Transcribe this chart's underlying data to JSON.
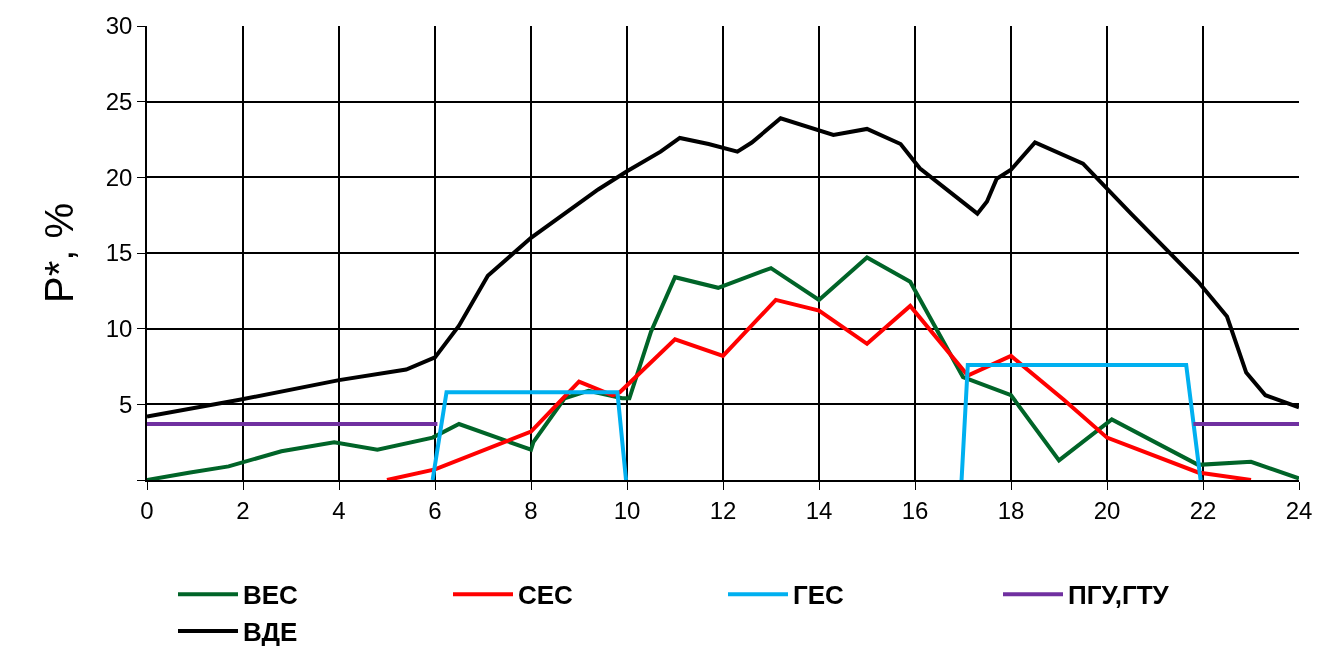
{
  "chart_data": {
    "type": "line",
    "ylabel": "P*, %",
    "xlim": [
      0,
      24
    ],
    "xticks": [
      0,
      2,
      4,
      6,
      8,
      10,
      12,
      14,
      16,
      18,
      20,
      22,
      24
    ],
    "ylim": [
      0,
      30
    ],
    "yticks": [
      {
        "value": 0,
        "label": null
      },
      5,
      10,
      15,
      20,
      25,
      30
    ],
    "grid": true,
    "legend": "bottom",
    "line_style": "solid",
    "marker": "none",
    "series": [
      {
        "name": "ВЕС",
        "color": "#006428",
        "x": [
          0,
          0.9,
          1.7,
          2.8,
          3.9,
          4.8,
          5.95,
          6.5,
          8.0,
          8.05,
          8.7,
          9.2,
          9.9,
          10.05,
          10.5,
          11.0,
          11.9,
          13.0,
          14.0,
          15.0,
          15.9,
          17.0,
          18.0,
          19.0,
          20.1,
          21.9,
          23.0,
          24.0
        ],
        "values": [
          0,
          0.5,
          0.9,
          1.9,
          2.5,
          2.0,
          2.8,
          3.7,
          2.0,
          2.5,
          5.4,
          5.9,
          5.4,
          5.4,
          9.8,
          13.4,
          12.7,
          14.0,
          11.9,
          14.7,
          13.1,
          6.8,
          5.6,
          1.3,
          4.0,
          1.0,
          1.2,
          0.1
        ]
      },
      {
        "name": "СЕС",
        "color": "#ff0000",
        "x": [
          5.0,
          6.0,
          8.0,
          9.0,
          9.7,
          9.85,
          11.0,
          12.0,
          13.1,
          14.0,
          15.0,
          15.9,
          17.1,
          18.0,
          19.1,
          20.0,
          21.9,
          23.0
        ],
        "values": [
          0,
          0.7,
          3.2,
          6.5,
          5.6,
          5.8,
          9.3,
          8.2,
          11.9,
          11.2,
          9.0,
          11.5,
          6.9,
          8.2,
          5.3,
          2.8,
          0.5,
          0
        ]
      },
      {
        "name": "ГЕС",
        "color": "#00b0f0",
        "x": [
          5.95,
          6.24,
          9.8,
          9.98,
          13.5,
          16.97,
          17.1,
          21.65,
          21.95
        ],
        "values": [
          0,
          5.8,
          5.8,
          0,
          null,
          0,
          7.6,
          7.6,
          0
        ]
      },
      {
        "name": "ПГУ,ГТУ",
        "color": "#7030a0",
        "x": [
          0,
          6.05,
          15,
          21.8,
          24
        ],
        "values": [
          3.7,
          3.7,
          null,
          3.7,
          3.7
        ]
      },
      {
        "name": "ВДЕ",
        "color": "#000000",
        "x": [
          0,
          1.93,
          4.0,
          5.4,
          6.0,
          6.5,
          7.1,
          8.0,
          9.4,
          10.0,
          10.7,
          11.1,
          11.7,
          12.3,
          12.6,
          13.2,
          14.3,
          15.0,
          15.7,
          16.1,
          17.3,
          17.5,
          17.7,
          18.0,
          18.5,
          19.5,
          20.5,
          21.9,
          22.5,
          22.9,
          23.3,
          24.0
        ],
        "values": [
          4.2,
          5.3,
          6.6,
          7.3,
          8.1,
          10.2,
          13.5,
          16.0,
          19.2,
          20.4,
          21.7,
          22.6,
          22.2,
          21.7,
          22.3,
          23.9,
          22.8,
          23.2,
          22.2,
          20.6,
          17.6,
          18.4,
          19.9,
          20.5,
          22.3,
          20.9,
          17.6,
          13.1,
          10.8,
          7.1,
          5.6,
          4.8
        ]
      }
    ]
  }
}
